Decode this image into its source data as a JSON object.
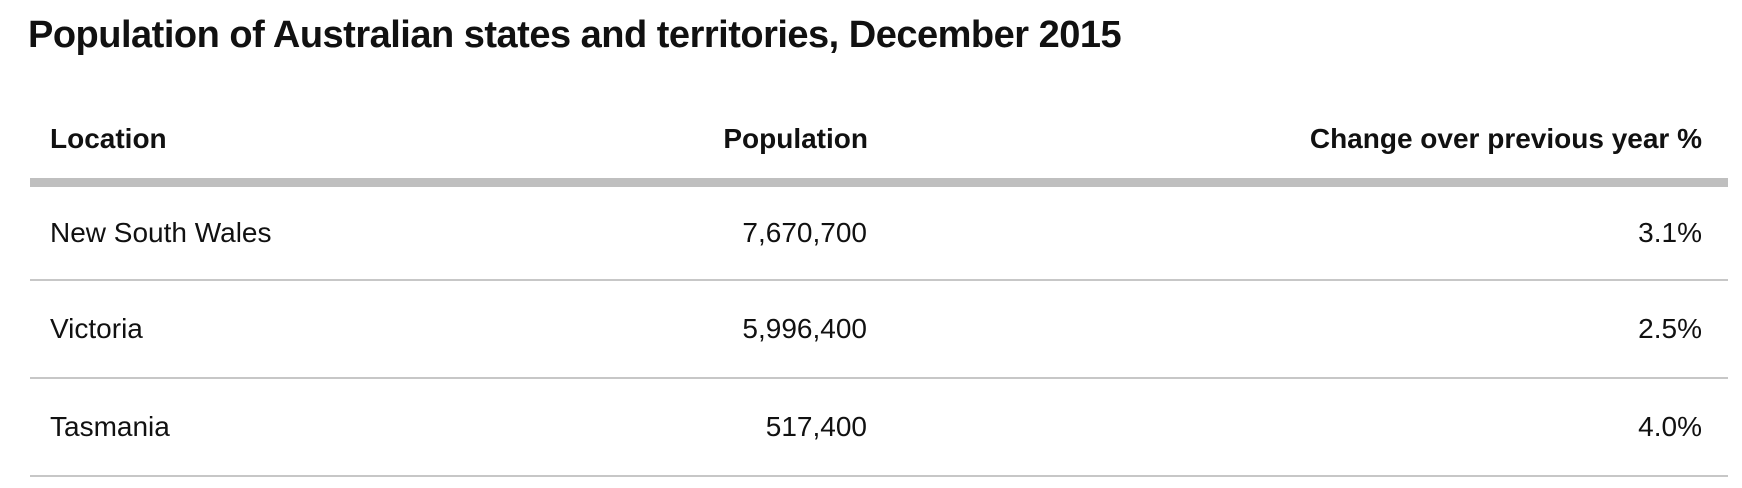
{
  "page": {
    "title": "Population of Australian states and territories, December 2015"
  },
  "table": {
    "columns": [
      {
        "label": "Location",
        "align": "left"
      },
      {
        "label": "Population",
        "align": "right"
      },
      {
        "label": "Change over previous year %",
        "align": "right"
      }
    ],
    "rows": [
      {
        "location": "New South Wales",
        "population": "7,670,700",
        "change": "3.1%"
      },
      {
        "location": "Victoria",
        "population": "5,996,400",
        "change": "2.5%"
      },
      {
        "location": "Tasmania",
        "population": "517,400",
        "change": "4.0%"
      }
    ]
  },
  "chart_data": {
    "type": "table",
    "title": "Population of Australian states and territories, December 2015",
    "columns": [
      "Location",
      "Population",
      "Change over previous year %"
    ],
    "rows": [
      [
        "New South Wales",
        7670700,
        3.1
      ],
      [
        "Victoria",
        5996400,
        2.5
      ],
      [
        "Tasmania",
        517400,
        4.0
      ]
    ]
  },
  "colors": {
    "background": "#ffffff",
    "text": "#111111",
    "header_rule": "#bfbfbf",
    "row_divider": "#c7c7c7"
  }
}
